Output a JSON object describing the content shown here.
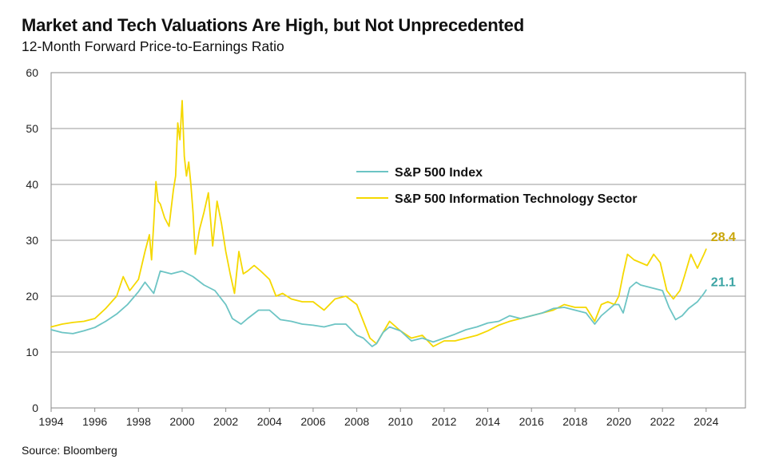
{
  "chart_data": {
    "type": "line",
    "title": "Market and Tech Valuations Are High, but Not Unprecedented",
    "subtitle": "12-Month Forward Price-to-Earnings Ratio",
    "source": "Source: Bloomberg",
    "xlabel": "",
    "ylabel": "",
    "xlim": [
      1994,
      2025.8
    ],
    "ylim": [
      0,
      60
    ],
    "grid": true,
    "legend_position": "center",
    "y_ticks": [
      "0",
      "10",
      "20",
      "30",
      "40",
      "50",
      "60"
    ],
    "x_ticks": [
      "1994",
      "1996",
      "1998",
      "2000",
      "2002",
      "2004",
      "2006",
      "2008",
      "2010",
      "2012",
      "2014",
      "2016",
      "2018",
      "2020",
      "2022",
      "2024"
    ],
    "series": [
      {
        "name": "S&P 500 Index",
        "color": "#6cc4c4",
        "end_label": "21.1",
        "x": [
          1994,
          1994.5,
          1995,
          1995.5,
          1996,
          1996.5,
          1997,
          1997.5,
          1998,
          1998.3,
          1998.7,
          1999,
          1999.5,
          2000,
          2000.5,
          2001,
          2001.5,
          2002,
          2002.3,
          2002.7,
          2003,
          2003.5,
          2004,
          2004.5,
          2005,
          2005.5,
          2006,
          2006.5,
          2007,
          2007.5,
          2008,
          2008.3,
          2008.7,
          2008.9,
          2009.2,
          2009.5,
          2010,
          2010.5,
          2011,
          2011.5,
          2012,
          2012.5,
          2013,
          2013.5,
          2014,
          2014.5,
          2015,
          2015.5,
          2016,
          2016.5,
          2017,
          2017.5,
          2018,
          2018.5,
          2018.9,
          2019.2,
          2019.5,
          2019.8,
          2020.0,
          2020.2,
          2020.5,
          2020.8,
          2021.0,
          2021.5,
          2022.0,
          2022.3,
          2022.6,
          2022.9,
          2023.2,
          2023.6,
          2023.9,
          2024.0
        ],
        "values": [
          14.0,
          13.5,
          13.3,
          13.8,
          14.4,
          15.5,
          16.8,
          18.5,
          20.8,
          22.5,
          20.5,
          24.5,
          24.0,
          24.5,
          23.5,
          22.0,
          21.0,
          18.5,
          16.0,
          15.0,
          16.0,
          17.5,
          17.5,
          15.8,
          15.5,
          15.0,
          14.8,
          14.5,
          15.0,
          15.0,
          13.0,
          12.5,
          11.0,
          11.5,
          13.5,
          14.5,
          13.8,
          12.0,
          12.5,
          11.8,
          12.5,
          13.2,
          14.0,
          14.5,
          15.2,
          15.5,
          16.5,
          16.0,
          16.5,
          17.0,
          17.8,
          18.0,
          17.5,
          17.0,
          15.0,
          16.5,
          17.5,
          18.5,
          18.5,
          17.0,
          21.5,
          22.5,
          22.0,
          21.5,
          21.0,
          18.0,
          15.8,
          16.5,
          17.8,
          19.0,
          20.5,
          21.1
        ]
      },
      {
        "name": "S&P 500 Information Technology Sector",
        "color": "#f5d800",
        "end_label": "28.4",
        "x": [
          1994,
          1994.5,
          1995,
          1995.5,
          1996,
          1996.5,
          1997,
          1997.3,
          1997.6,
          1998,
          1998.3,
          1998.5,
          1998.6,
          1998.7,
          1998.8,
          1998.9,
          1999.0,
          1999.2,
          1999.4,
          1999.6,
          1999.7,
          1999.8,
          1999.9,
          2000.0,
          2000.1,
          2000.2,
          2000.3,
          2000.4,
          2000.5,
          2000.6,
          2000.8,
          2001.0,
          2001.2,
          2001.4,
          2001.6,
          2001.8,
          2002.0,
          2002.2,
          2002.4,
          2002.6,
          2002.8,
          2003.0,
          2003.3,
          2003.6,
          2004.0,
          2004.3,
          2004.6,
          2005.0,
          2005.5,
          2006.0,
          2006.5,
          2007.0,
          2007.5,
          2008.0,
          2008.3,
          2008.6,
          2008.9,
          2009.2,
          2009.5,
          2010.0,
          2010.5,
          2011.0,
          2011.5,
          2012.0,
          2012.5,
          2013.0,
          2013.5,
          2014.0,
          2014.5,
          2015.0,
          2015.5,
          2016.0,
          2016.5,
          2017.0,
          2017.5,
          2018.0,
          2018.5,
          2018.9,
          2019.2,
          2019.5,
          2019.8,
          2020.0,
          2020.2,
          2020.4,
          2020.7,
          2021.0,
          2021.3,
          2021.6,
          2021.9,
          2022.2,
          2022.5,
          2022.8,
          2023.0,
          2023.3,
          2023.6,
          2023.9,
          2024.0
        ],
        "values": [
          14.5,
          15.0,
          15.3,
          15.5,
          16.0,
          17.8,
          20.0,
          23.5,
          21.0,
          23.0,
          28.0,
          31.0,
          26.5,
          33.0,
          40.5,
          37.0,
          36.5,
          34.0,
          32.5,
          39.0,
          41.5,
          51.0,
          48.0,
          55.0,
          45.0,
          41.5,
          44.0,
          40.0,
          35.0,
          27.5,
          32.0,
          35.0,
          38.5,
          29.0,
          37.0,
          33.0,
          28.0,
          24.0,
          20.5,
          28.0,
          24.0,
          24.5,
          25.5,
          24.5,
          23.0,
          20.0,
          20.5,
          19.5,
          19.0,
          19.0,
          17.5,
          19.5,
          20.0,
          18.5,
          15.5,
          12.5,
          11.5,
          13.5,
          15.5,
          13.8,
          12.5,
          13.0,
          11.0,
          12.0,
          12.0,
          12.5,
          13.0,
          13.8,
          14.8,
          15.5,
          16.0,
          16.5,
          17.0,
          17.5,
          18.5,
          18.0,
          18.0,
          15.5,
          18.5,
          19.0,
          18.5,
          20.0,
          24.0,
          27.5,
          26.5,
          26.0,
          25.5,
          27.5,
          26.0,
          21.0,
          19.5,
          21.0,
          23.5,
          27.5,
          25.0,
          27.5,
          28.4
        ]
      }
    ]
  }
}
